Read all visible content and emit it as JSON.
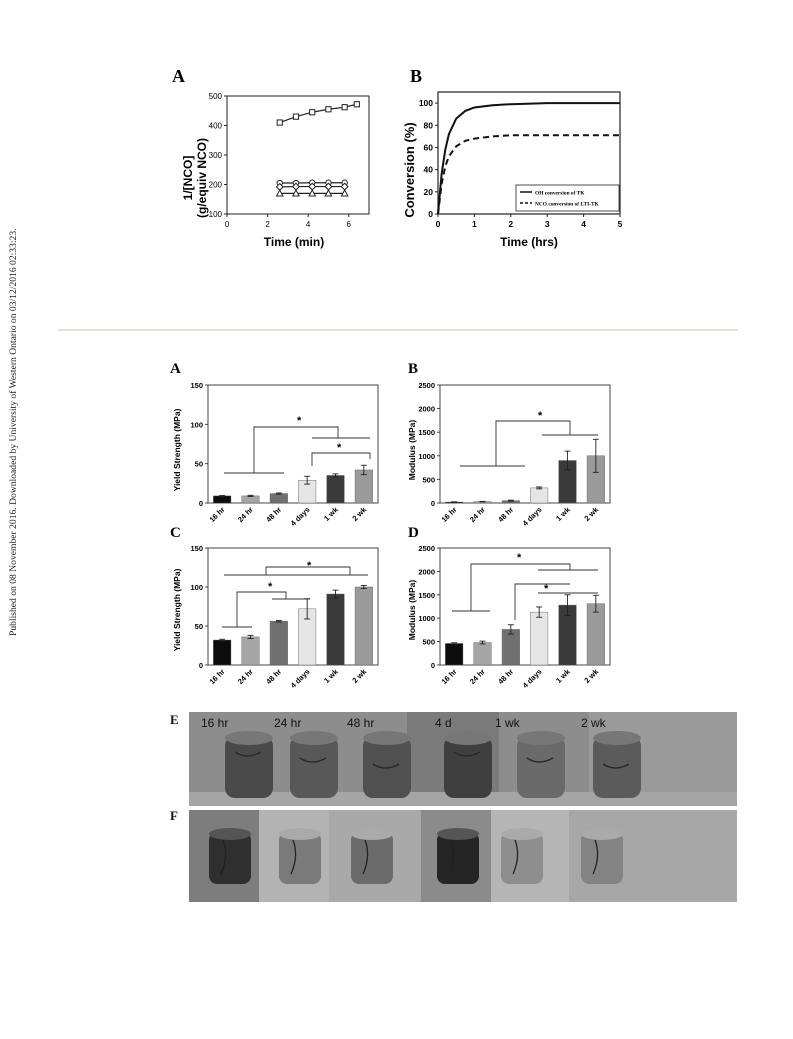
{
  "side_note": "Published on 08 November 2016. Downloaded by University of Western Ontario on 03/12/2016 02:33:23.",
  "figure_top": {
    "panel_a": {
      "letter": "A",
      "ylabel_line1": "1/[NCO]",
      "ylabel_line2": "(g/equiv NCO)",
      "xlabel": "Time (min)"
    },
    "panel_b": {
      "letter": "B",
      "ylabel": "Conversion (%)",
      "xlabel": "Time (hrs)",
      "legend": [
        "OH conversion of TK",
        "NCO conversion of LTI-TK"
      ]
    }
  },
  "figure_bottom": {
    "panel_a": {
      "letter": "A",
      "ylabel": "Yield Strength (MPa)",
      "star": "*"
    },
    "panel_b": {
      "letter": "B",
      "ylabel": "Modulus (MPa)",
      "star": "*"
    },
    "panel_c": {
      "letter": "C",
      "ylabel": "Yield Strength (MPa)",
      "star": "*"
    },
    "panel_d": {
      "letter": "D",
      "ylabel": "Modulus (MPa)",
      "star": "*"
    },
    "panel_e": {
      "letter": "E",
      "labels": [
        "16 hr",
        "24 hr",
        "48 hr",
        "4 d",
        "1 wk",
        "2 wk"
      ]
    },
    "panel_f": {
      "letter": "F"
    }
  },
  "chart_data": [
    {
      "type": "scatter",
      "panel": "A (top)",
      "xlabel": "Time (min)",
      "ylabel": "1/[NCO] (g/equiv NCO)",
      "xlim": [
        0,
        7
      ],
      "ylim": [
        100,
        500
      ],
      "xticks": [
        0,
        2,
        4,
        6
      ],
      "yticks": [
        100,
        200,
        300,
        400,
        500
      ],
      "series": [
        {
          "marker": "square",
          "x": [
            2.6,
            3.4,
            4.2,
            5.0,
            5.8,
            6.4
          ],
          "y": [
            410,
            430,
            445,
            455,
            462,
            472
          ]
        },
        {
          "marker": "circle",
          "x": [
            2.6,
            3.4,
            4.2,
            5.0,
            5.8
          ],
          "y": [
            205,
            205,
            206,
            206,
            206
          ]
        },
        {
          "marker": "diamond",
          "x": [
            2.6,
            3.4,
            4.2,
            5.0,
            5.8
          ],
          "y": [
            192,
            193,
            193,
            193,
            193
          ]
        },
        {
          "marker": "triangle",
          "x": [
            2.6,
            3.4,
            4.2,
            5.0,
            5.8
          ],
          "y": [
            170,
            170,
            170,
            170,
            170
          ]
        }
      ]
    },
    {
      "type": "line",
      "panel": "B (top)",
      "xlabel": "Time (hrs)",
      "ylabel": "Conversion (%)",
      "xlim": [
        0,
        5
      ],
      "ylim": [
        0,
        110
      ],
      "xticks": [
        0,
        1,
        2,
        3,
        4,
        5
      ],
      "yticks": [
        0,
        20,
        40,
        60,
        80,
        100
      ],
      "legend_position": "bottom-right",
      "series": [
        {
          "name": "OH conversion of TK",
          "style": "solid",
          "x": [
            0,
            0.1,
            0.2,
            0.3,
            0.5,
            0.75,
            1,
            1.5,
            2,
            3,
            4,
            5
          ],
          "y": [
            0,
            36,
            58,
            72,
            86,
            93,
            96,
            98,
            99,
            100,
            100,
            100
          ]
        },
        {
          "name": "NCO conversion of LTI-TK",
          "style": "dashed",
          "x": [
            0,
            0.1,
            0.2,
            0.3,
            0.5,
            0.75,
            1,
            1.5,
            2,
            3,
            4,
            5
          ],
          "y": [
            0,
            27,
            43,
            52,
            61,
            66,
            68,
            70,
            71,
            71,
            71,
            71
          ]
        }
      ]
    },
    {
      "type": "bar",
      "panel": "A (bottom)",
      "categories": [
        "16 hr",
        "24 hr",
        "48 hr",
        "4 days",
        "1 wk",
        "2 wk"
      ],
      "values": [
        9,
        9,
        12,
        29,
        35,
        42
      ],
      "errors": [
        0.5,
        0.8,
        0.8,
        5,
        2,
        6
      ],
      "ylabel": "Yield Strength (MPa)",
      "ylim": [
        0,
        150
      ],
      "yticks": [
        0,
        50,
        100,
        150
      ]
    },
    {
      "type": "bar",
      "panel": "B (bottom)",
      "categories": [
        "16 hr",
        "24 hr",
        "48 hr",
        "4 days",
        "1 wk",
        "2 wk"
      ],
      "values": [
        20,
        30,
        50,
        320,
        900,
        1000
      ],
      "errors": [
        5,
        5,
        10,
        20,
        200,
        350
      ],
      "ylabel": "Modulus (MPa)",
      "ylim": [
        0,
        2500
      ],
      "yticks": [
        0,
        500,
        1000,
        1500,
        2000,
        2500
      ]
    },
    {
      "type": "bar",
      "panel": "C (bottom)",
      "categories": [
        "16 hr",
        "24 hr",
        "48 hr",
        "4 days",
        "1 wk",
        "2 wk"
      ],
      "values": [
        32,
        36,
        56,
        72,
        91,
        100
      ],
      "errors": [
        1,
        2,
        1,
        13,
        5,
        2
      ],
      "ylabel": "Yield Strength (MPa)",
      "ylim": [
        0,
        150
      ],
      "yticks": [
        0,
        50,
        100,
        150
      ]
    },
    {
      "type": "bar",
      "panel": "D (bottom)",
      "categories": [
        "16 hr",
        "24 hr",
        "48 hr",
        "4 days",
        "1 wk",
        "2 wk"
      ],
      "values": [
        460,
        480,
        760,
        1130,
        1280,
        1310
      ],
      "errors": [
        15,
        30,
        100,
        110,
        220,
        180
      ],
      "ylabel": "Modulus (MPa)",
      "ylim": [
        0,
        2500
      ],
      "yticks": [
        0,
        500,
        1000,
        1500,
        2000,
        2500
      ]
    }
  ],
  "colors": {
    "bar_fills": [
      "#0d0d0d",
      "#a5a5a5",
      "#707070",
      "#e5e5e5",
      "#3a3a3a",
      "#9a9a9a"
    ],
    "photo_bg_e": "#8f8f8f",
    "photo_bg_f": "#9d9d9d"
  }
}
